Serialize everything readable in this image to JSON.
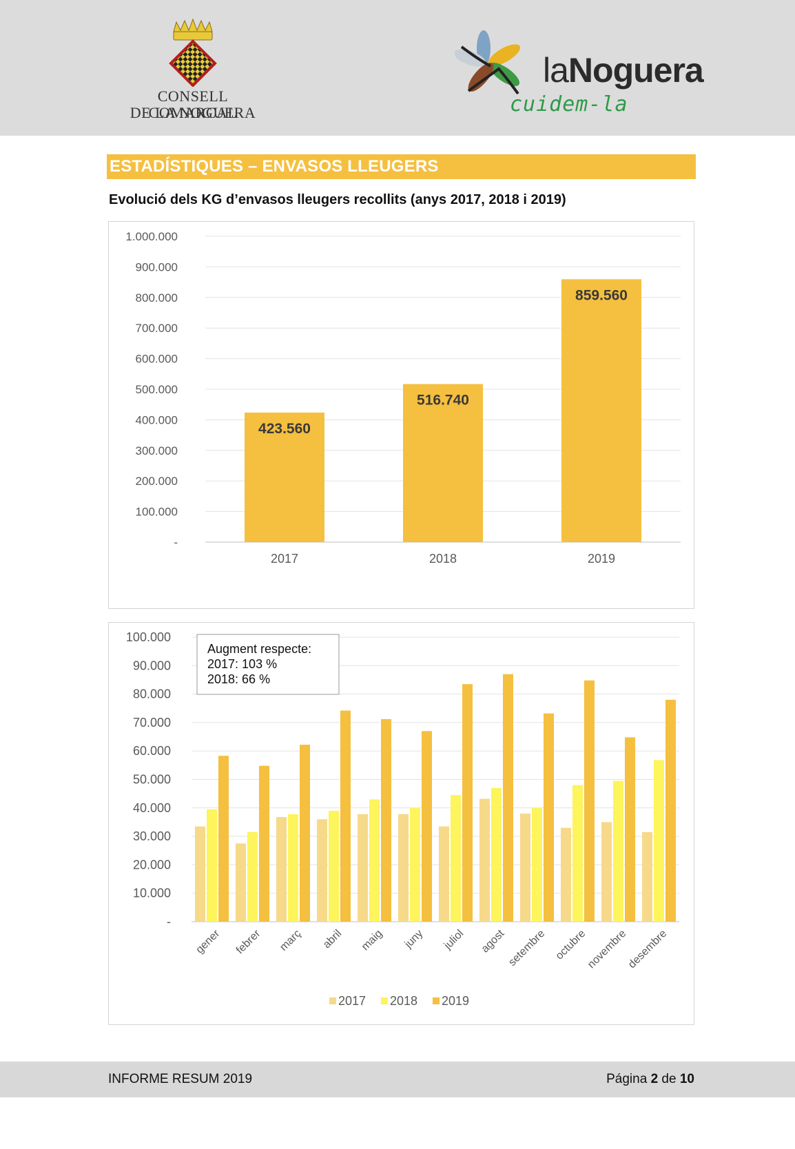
{
  "header": {
    "consell_line1": "CONSELL COMARCAL",
    "consell_line2": "DE LA NOGUERA",
    "brand_light": "la",
    "brand_bold": "Noguera",
    "brand_tagline": "cuidem-la",
    "colors": {
      "brand_green": "#2e9a4a",
      "crown": "#e8c93a"
    }
  },
  "section": {
    "title": "ESTADÍSTIQUES – ENVASOS LLEUGERS",
    "color": "#f5bf3f"
  },
  "chart1_heading": "Evolució dels KG d’envasos lleugers recollits (anys 2017, 2018 i 2019)",
  "chart_data": [
    {
      "type": "bar",
      "categories": [
        "2017",
        "2018",
        "2019"
      ],
      "values": [
        423560,
        516740,
        859560
      ],
      "value_labels": [
        "423.560",
        "516.740",
        "859.560"
      ],
      "ylim": [
        0,
        1000000
      ],
      "yticks": [
        "-",
        "100.000",
        "200.000",
        "300.000",
        "400.000",
        "500.000",
        "600.000",
        "700.000",
        "800.000",
        "900.000",
        "1.000.000"
      ],
      "grid": true,
      "bar_color": "#f5bf3f"
    },
    {
      "type": "bar",
      "categories": [
        "gener",
        "febrer",
        "març",
        "abril",
        "maig",
        "juny",
        "juliol",
        "agost",
        "setembre",
        "octubre",
        "novembre",
        "desembre"
      ],
      "series": [
        {
          "name": "2017",
          "color": "#f7d98a",
          "values": [
            33500,
            27500,
            36800,
            36000,
            37800,
            37800,
            33500,
            43200,
            38000,
            33000,
            35000,
            31500
          ]
        },
        {
          "name": "2018",
          "color": "#fef45c",
          "values": [
            39500,
            31500,
            37800,
            39000,
            43000,
            40000,
            44500,
            47000,
            40000,
            48000,
            49500,
            56800
          ]
        },
        {
          "name": "2019",
          "color": "#f5bf3f",
          "values": [
            58300,
            54800,
            62200,
            74200,
            71200,
            67000,
            83500,
            87000,
            73200,
            84800,
            64800,
            78000
          ]
        }
      ],
      "ylim": [
        0,
        100000
      ],
      "yticks": [
        "-",
        "10.000",
        "20.000",
        "30.000",
        "40.000",
        "50.000",
        "60.000",
        "70.000",
        "80.000",
        "90.000",
        "100.000"
      ],
      "grid": true,
      "legend": "bottom",
      "annotation": [
        "Augment respecte:",
        "2017: 103 %",
        "2018: 66 %"
      ]
    }
  ],
  "footer": {
    "left": "INFORME RESUM 2019",
    "right_prefix": "Página ",
    "page": "2",
    "right_mid": " de ",
    "total": "10"
  }
}
